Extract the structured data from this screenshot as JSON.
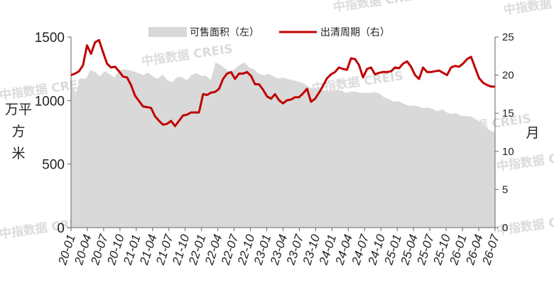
{
  "chart_data": {
    "type": "area",
    "x_ticks": [
      "20-01",
      "20-04",
      "20-07",
      "20-10",
      "21-01",
      "21-04",
      "21-07",
      "21-10",
      "22-01",
      "22-04",
      "22-07",
      "22-10",
      "23-01",
      "23-04",
      "23-07",
      "23-10",
      "24-01",
      "24-04",
      "24-07",
      "24-10",
      "25-01",
      "25-04",
      "25-07",
      "25-10",
      "26-01",
      "26-04",
      "26-07"
    ],
    "left_axis": {
      "label": "万平方米",
      "ylim": [
        0,
        1500
      ],
      "ticks": [
        "0",
        "500",
        "1000",
        "1500"
      ]
    },
    "right_axis": {
      "label": "月",
      "ylim": [
        0,
        25
      ],
      "ticks": [
        "0",
        "5",
        "10",
        "15",
        "20",
        "25"
      ]
    },
    "legend": [
      {
        "name": "可售面积（左）",
        "kind": "area",
        "color": "#d9d9d9"
      },
      {
        "name": "出清周期（右）",
        "kind": "line",
        "color": "#c00000"
      }
    ],
    "series": [
      {
        "name": "可售面积（左）",
        "axis": "left",
        "type": "area",
        "color": "#d9d9d9",
        "values": [
          1130,
          1060,
          1180,
          1160,
          1240,
          1225,
          1190,
          1230,
          1210,
          1180,
          1240,
          1245,
          1240,
          1230,
          1215,
          1200,
          1220,
          1190,
          1170,
          1205,
          1160,
          1145,
          1185,
          1185,
          1160,
          1200,
          1215,
          1195,
          1195,
          1160,
          1300,
          1280,
          1250,
          1220,
          1250,
          1280,
          1300,
          1260,
          1245,
          1210,
          1200,
          1210,
          1190,
          1175,
          1180,
          1170,
          1160,
          1150,
          1140,
          1115,
          1095,
          1090,
          1085,
          1075,
          1075,
          1080,
          1080,
          1060,
          1070,
          1070,
          1060,
          1060,
          1060,
          1065,
          1055,
          1025,
          1010,
          990,
          995,
          975,
          960,
          960,
          955,
          940,
          945,
          935,
          915,
          930,
          905,
          895,
          900,
          880,
          878,
          875,
          850,
          820,
          790,
          765,
          750
        ]
      },
      {
        "name": "出清周期（右）",
        "axis": "right",
        "type": "line",
        "color": "#c00000",
        "values": [
          20.0,
          20.2,
          20.5,
          21.3,
          23.9,
          22.8,
          24.3,
          24.6,
          23.0,
          21.5,
          21.0,
          21.1,
          20.5,
          19.8,
          19.7,
          18.7,
          17.3,
          16.6,
          15.9,
          15.8,
          15.7,
          14.6,
          14.0,
          13.5,
          13.6,
          14.0,
          13.3,
          14.0,
          14.7,
          14.8,
          15.1,
          15.1,
          15.1,
          17.5,
          17.4,
          17.7,
          17.8,
          18.2,
          19.5,
          20.2,
          20.4,
          19.5,
          20.2,
          20.2,
          20.4,
          19.9,
          18.8,
          18.8,
          18.1,
          17.2,
          16.9,
          17.5,
          16.7,
          16.3,
          16.7,
          16.8,
          17.1,
          17.1,
          17.6,
          18.2,
          16.5,
          16.9,
          17.7,
          18.6,
          19.6,
          20.1,
          20.4,
          21.0,
          20.8,
          20.7,
          22.2,
          22.1,
          21.3,
          19.7,
          20.8,
          21.0,
          20.1,
          20.3,
          20.4,
          20.4,
          20.5,
          21.0,
          20.9,
          21.5,
          21.8,
          21.1,
          20.0,
          19.5,
          21.0,
          20.4,
          20.4,
          20.5,
          20.6,
          20.3,
          20.0,
          21.0,
          21.2,
          21.1,
          21.5,
          22.1,
          22.4,
          21.0,
          19.6,
          19.0,
          18.7,
          18.5,
          18.5
        ]
      }
    ],
    "watermark": "中指数据 CREIS"
  }
}
